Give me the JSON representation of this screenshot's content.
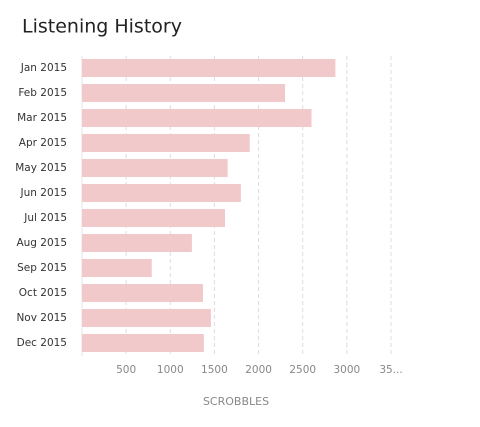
{
  "chart_data": {
    "type": "bar",
    "orientation": "horizontal",
    "title": "Listening History",
    "xlabel": "SCROBBLES",
    "categories": [
      "Jan 2015",
      "Feb 2015",
      "Mar 2015",
      "Apr 2015",
      "May 2015",
      "Jun 2015",
      "Jul 2015",
      "Aug 2015",
      "Sep 2015",
      "Oct 2015",
      "Nov 2015",
      "Dec 2015"
    ],
    "values": [
      2870,
      2300,
      2600,
      1900,
      1650,
      1800,
      1620,
      1245,
      790,
      1370,
      1460,
      1380
    ],
    "color": "#f2c9cb",
    "xlim": [
      0,
      3500
    ],
    "xticks": [
      500,
      1000,
      1500,
      2000,
      2500,
      3000,
      {
        "value": 3500,
        "label": "35..."
      }
    ],
    "grid": true
  }
}
